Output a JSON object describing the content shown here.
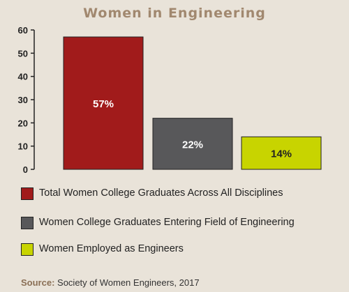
{
  "chart_data": {
    "type": "bar",
    "title": "Women in Engineering",
    "categories": [
      "Total Women College Graduates Across All Disciplines",
      "Women College Graduates Entering Field of Engineering",
      "Women Employed as Engineers"
    ],
    "values": [
      57,
      22,
      14
    ],
    "data_labels": [
      "57%",
      "22%",
      "14%"
    ],
    "colors": [
      "#a11b1b",
      "#58585a",
      "#c8d400"
    ],
    "label_colors": [
      "#ffffff",
      "#ffffff",
      "#222222"
    ],
    "ylim": [
      0,
      60
    ],
    "yticks": [
      0,
      10,
      20,
      30,
      40,
      50,
      60
    ],
    "ytick_labels": [
      "0",
      "10",
      "20",
      "30",
      "40",
      "50",
      "60"
    ],
    "grid": false,
    "legend_position": "bottom"
  },
  "source": {
    "label": "Source:",
    "text": "Society of Women Engineers, 2017"
  }
}
